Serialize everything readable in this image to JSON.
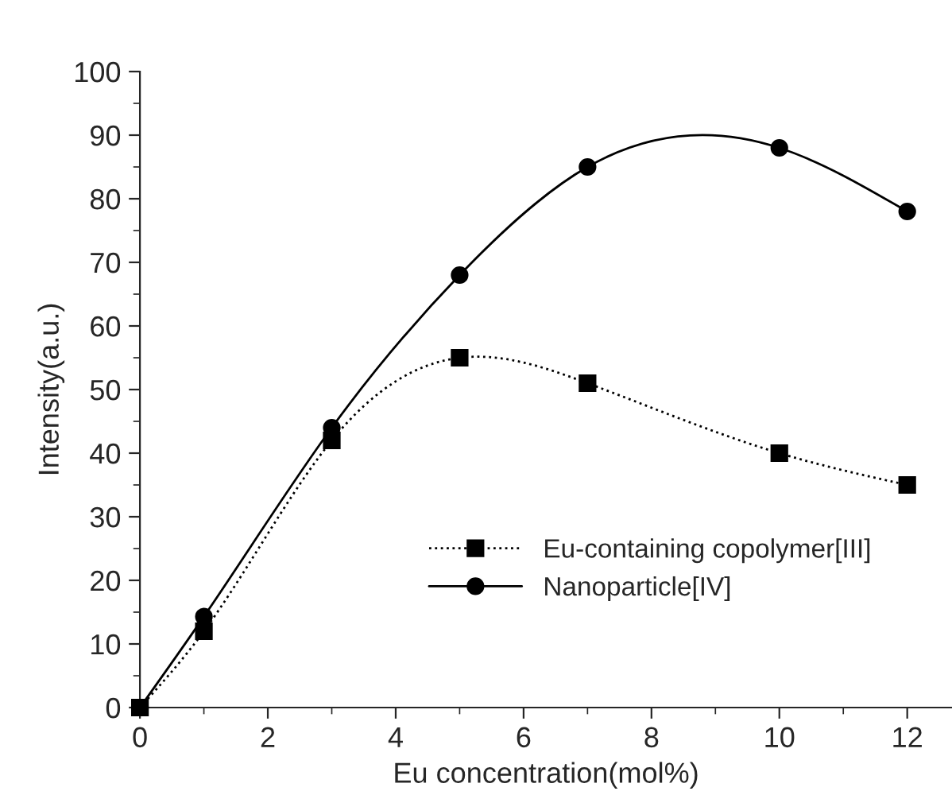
{
  "chart_data": {
    "type": "line",
    "xlabel": "Eu concentration(mol%)",
    "ylabel": "Intensity(a.u.)",
    "x": [
      0,
      1,
      3,
      5,
      7,
      10,
      12
    ],
    "series": [
      {
        "name": "Eu-containing copolymer[III]",
        "color": "#000000",
        "marker": "square",
        "line_style": "dotted",
        "values": [
          0,
          12,
          42,
          55,
          51,
          40,
          35
        ]
      },
      {
        "name": "Nanoparticle[IV]",
        "color": "#000000",
        "marker": "circle",
        "line_style": "solid",
        "values": [
          0,
          14.3,
          44,
          68,
          85,
          88,
          78
        ]
      }
    ],
    "xlim": [
      0,
      12.7
    ],
    "ylim": [
      0,
      100
    ],
    "xticks": [
      0,
      {
        "value": 1,
        "label": null
      },
      2,
      {
        "value": 3,
        "label": null
      },
      4,
      {
        "value": 5,
        "label": null
      },
      6,
      {
        "value": 7,
        "label": null
      },
      8,
      {
        "value": 9,
        "label": null
      },
      10,
      {
        "value": 11,
        "label": null
      },
      12
    ],
    "yticks": [
      0,
      {
        "value": 5,
        "label": null
      },
      10,
      {
        "value": 15,
        "label": null
      },
      20,
      {
        "value": 25,
        "label": null
      },
      30,
      {
        "value": 35,
        "label": null
      },
      40,
      {
        "value": 45,
        "label": null
      },
      50,
      {
        "value": 55,
        "label": null
      },
      60,
      {
        "value": 65,
        "label": null
      },
      70,
      {
        "value": 75,
        "label": null
      },
      80,
      {
        "value": 85,
        "label": null
      },
      90,
      {
        "value": 95,
        "label": null
      },
      100
    ],
    "grid": false,
    "legend": "bottom right"
  }
}
